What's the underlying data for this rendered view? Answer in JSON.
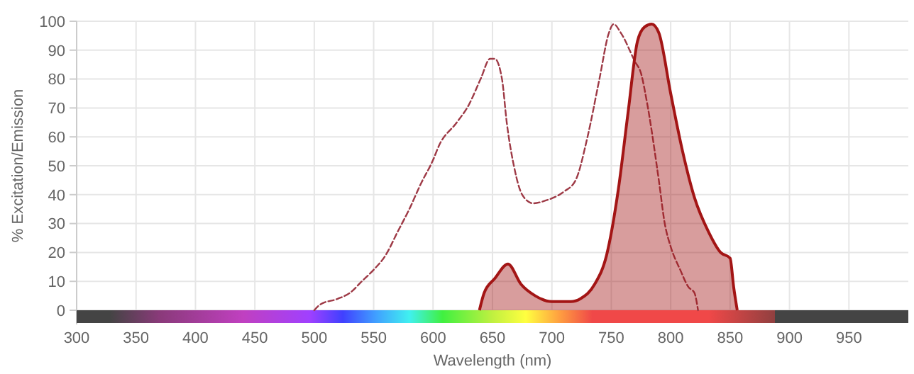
{
  "chart_data": {
    "type": "line",
    "xlabel": "Wavelength (nm)",
    "ylabel": "% Excitation/Emission",
    "xlim": [
      300,
      1000
    ],
    "xticks": [
      300,
      350,
      400,
      450,
      500,
      550,
      600,
      650,
      700,
      750,
      800,
      850,
      900,
      950
    ],
    "ylim": [
      0,
      100
    ],
    "yticks": [
      0,
      10,
      20,
      30,
      40,
      50,
      60,
      70,
      80,
      90,
      100
    ],
    "grid": true,
    "series": [
      {
        "line_style": "dashed",
        "color": "#9e3a46",
        "x": [
          500,
          505,
          520,
          530,
          540,
          550,
          560,
          570,
          580,
          590,
          600,
          605,
          620,
          630,
          640,
          648,
          652,
          658,
          662,
          668,
          675,
          684,
          695,
          710,
          720,
          730,
          740,
          748,
          752,
          758,
          770,
          775,
          780,
          790,
          795,
          800,
          808,
          815,
          820,
          823
        ],
        "values": [
          0,
          2,
          4,
          6,
          10,
          14,
          19,
          27,
          35,
          44,
          52,
          57,
          65,
          71,
          80,
          87,
          87,
          80,
          65,
          50,
          40,
          37,
          38,
          41,
          45,
          60,
          80,
          96,
          99,
          96,
          86,
          82,
          72,
          45,
          30,
          22,
          14,
          8,
          6,
          0
        ]
      },
      {
        "type": "area",
        "line_style": "solid",
        "color": "#a31515",
        "x": [
          639,
          643,
          652,
          663,
          674,
          686,
          700,
          716,
          724,
          736,
          746,
          756,
          764,
          772,
          778,
          784,
          790,
          800,
          810,
          820,
          832,
          842,
          850,
          853,
          856
        ],
        "values": [
          0,
          6,
          11,
          16,
          9,
          5,
          3,
          3,
          4,
          9,
          19,
          42,
          68,
          93,
          98,
          99,
          96,
          75,
          55,
          39,
          27,
          20,
          18,
          8,
          0
        ]
      }
    ]
  }
}
